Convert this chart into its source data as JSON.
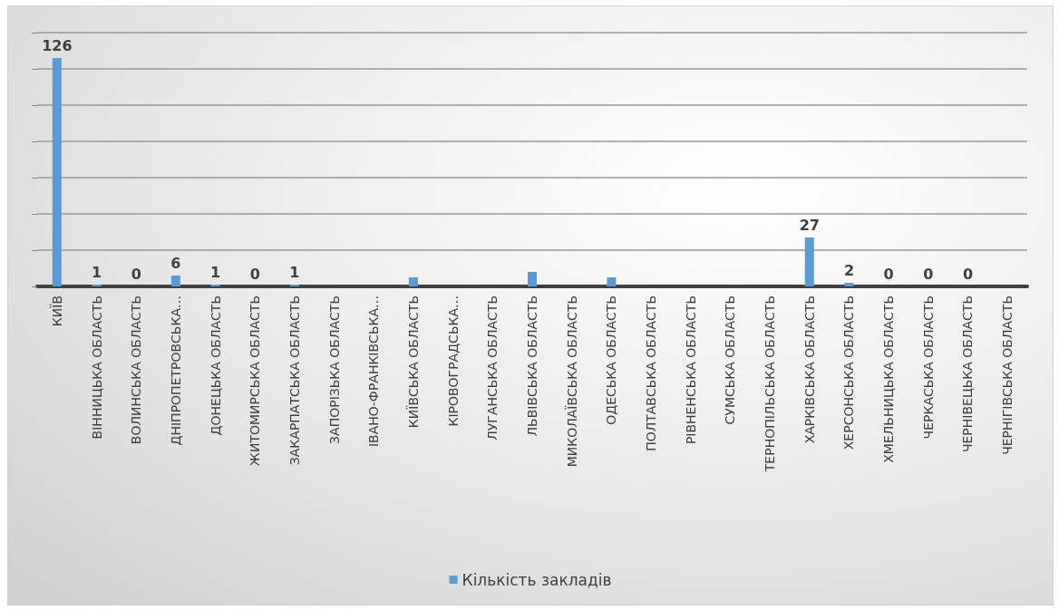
{
  "chart_data": {
    "type": "bar",
    "categories": [
      "КИЇВ",
      "ВІННИЦЬКА ОБЛАСТЬ",
      "ВОЛИНСЬКА ОБЛАСТЬ",
      "ДНІПРОПЕТРОВСЬКА…",
      "ДОНЕЦЬКА ОБЛАСТЬ",
      "ЖИТОМИРСЬКА ОБЛАСТЬ",
      "ЗАКАРПАТСЬКА ОБЛАСТЬ",
      "ЗАПОРІЗЬКА ОБЛАСТЬ",
      "ІВАНО-ФРАНКІВСЬКА…",
      "КИЇВСЬКА ОБЛАСТЬ",
      "КІРОВОГРАДСЬКА…",
      "ЛУГАНСЬКА ОБЛАСТЬ",
      "ЛЬВІВСЬКА ОБЛАСТЬ",
      "МИКОЛАЇВСЬКА ОБЛАСТЬ",
      "ОДЕСЬКА ОБЛАСТЬ",
      "ПОЛТАВСЬКА ОБЛАСТЬ",
      "РІВНЕНСЬКА ОБЛАСТЬ",
      "СУМСЬКА ОБЛАСТЬ",
      "ТЕРНОПІЛЬСЬКА ОБЛАСТЬ",
      "ХАРКІВСЬКА ОБЛАСТЬ",
      "ХЕРСОНСЬКА ОБЛАСТЬ",
      "ХМЕЛЬНИЦЬКА ОБЛАСТЬ",
      "ЧЕРКАСЬКА ОБЛАСТЬ",
      "ЧЕРНІВЕЦЬКА ОБЛАСТЬ",
      "ЧЕРНІГІВСЬКА ОБЛАСТЬ"
    ],
    "series": [
      {
        "name": "Кількість закладів",
        "color": "#5b9bd5",
        "values": [
          126,
          1,
          0,
          6,
          1,
          0,
          1,
          0,
          0,
          5,
          0,
          0,
          8,
          0,
          5,
          0,
          0,
          0,
          0,
          27,
          2,
          0,
          0,
          0,
          0
        ],
        "value_labels": [
          "126",
          "1",
          "0",
          "6",
          "1",
          "0",
          "1",
          null,
          null,
          null,
          null,
          null,
          null,
          null,
          null,
          null,
          null,
          null,
          null,
          "27",
          "2",
          "0",
          "0",
          "0",
          null
        ]
      }
    ],
    "ylim": [
      0,
      140
    ],
    "yticks": [
      {
        "value": 0,
        "label": null
      },
      {
        "value": 20,
        "label": null
      },
      {
        "value": 40,
        "label": null
      },
      {
        "value": 60,
        "label": null
      },
      {
        "value": 80,
        "label": null
      },
      {
        "value": 100,
        "label": null
      },
      {
        "value": 120,
        "label": null
      },
      {
        "value": 140,
        "label": null
      }
    ],
    "tick_labels": "x",
    "grid": "y",
    "legend": "bottom"
  }
}
